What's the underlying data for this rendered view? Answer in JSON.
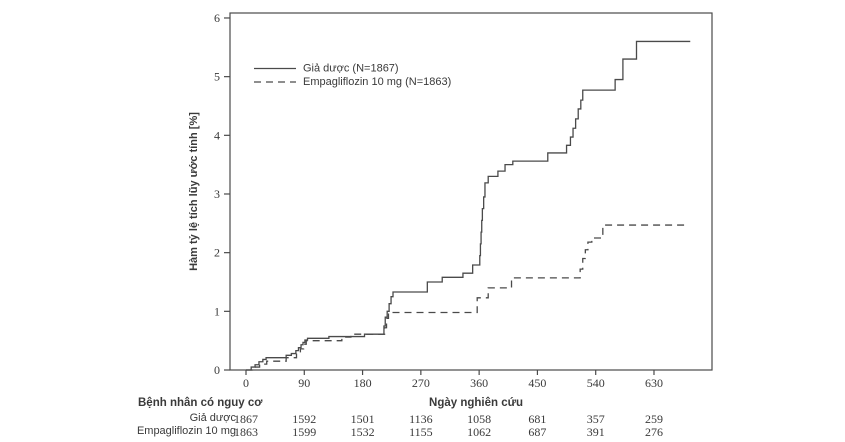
{
  "figure": {
    "background": "#ffffff",
    "line_color": "#4a4a4a",
    "text_color": "#3a3a3a"
  },
  "chart_data": {
    "type": "line",
    "subtype": "kaplan-meier-step-cumulative-incidence",
    "title": "",
    "xlabel": "Ngày nghiên cứu",
    "ylabel": "Hàm tỷ lệ tích lũy ước tính [%]",
    "xlim": [
      -25,
      720
    ],
    "ylim": [
      0,
      6.1
    ],
    "x_ticks": [
      0,
      90,
      180,
      270,
      360,
      450,
      540,
      630
    ],
    "y_ticks": [
      0,
      1,
      2,
      3,
      4,
      5,
      6
    ],
    "grid": false,
    "legend_position": "upper-left-inside",
    "series": [
      {
        "name": "Giả dược (N=1867)",
        "style": "solid",
        "points": [
          [
            0,
            0
          ],
          [
            8,
            0.05
          ],
          [
            14,
            0.09
          ],
          [
            20,
            0.14
          ],
          [
            26,
            0.18
          ],
          [
            31,
            0.21
          ],
          [
            62,
            0.25
          ],
          [
            70,
            0.28
          ],
          [
            77,
            0.33
          ],
          [
            81,
            0.38
          ],
          [
            85,
            0.43
          ],
          [
            88,
            0.47
          ],
          [
            91,
            0.51
          ],
          [
            95,
            0.54
          ],
          [
            128,
            0.57
          ],
          [
            183,
            0.61
          ],
          [
            213,
            0.75
          ],
          [
            215,
            0.9
          ],
          [
            218,
            1.0
          ],
          [
            221,
            1.13
          ],
          [
            224,
            1.25
          ],
          [
            227,
            1.33
          ],
          [
            280,
            1.5
          ],
          [
            303,
            1.58
          ],
          [
            335,
            1.65
          ],
          [
            350,
            1.79
          ],
          [
            361,
            1.95
          ],
          [
            362,
            2.15
          ],
          [
            363,
            2.35
          ],
          [
            364,
            2.55
          ],
          [
            365,
            2.75
          ],
          [
            367,
            2.95
          ],
          [
            369,
            3.19
          ],
          [
            374,
            3.3
          ],
          [
            389,
            3.39
          ],
          [
            400,
            3.5
          ],
          [
            412,
            3.56
          ],
          [
            466,
            3.7
          ],
          [
            495,
            3.83
          ],
          [
            501,
            3.97
          ],
          [
            505,
            4.12
          ],
          [
            509,
            4.28
          ],
          [
            513,
            4.45
          ],
          [
            517,
            4.6
          ],
          [
            520,
            4.77
          ],
          [
            570,
            4.95
          ],
          [
            582,
            5.3
          ],
          [
            603,
            5.6
          ],
          [
            686,
            5.6
          ]
        ]
      },
      {
        "name": "Empagliflozin 10 mg (N=1863)",
        "style": "dashed",
        "points": [
          [
            0,
            0
          ],
          [
            10,
            0.05
          ],
          [
            21,
            0.1
          ],
          [
            32,
            0.15
          ],
          [
            62,
            0.21
          ],
          [
            78,
            0.28
          ],
          [
            84,
            0.36
          ],
          [
            89,
            0.44
          ],
          [
            93,
            0.5
          ],
          [
            148,
            0.56
          ],
          [
            162,
            0.61
          ],
          [
            214,
            0.72
          ],
          [
            217,
            0.88
          ],
          [
            220,
            0.98
          ],
          [
            357,
            1.23
          ],
          [
            374,
            1.4
          ],
          [
            410,
            1.57
          ],
          [
            516,
            1.72
          ],
          [
            520,
            1.9
          ],
          [
            524,
            2.05
          ],
          [
            528,
            2.18
          ],
          [
            534,
            2.25
          ],
          [
            551,
            2.47
          ],
          [
            678,
            2.47
          ]
        ]
      }
    ]
  },
  "risk_table": {
    "header": "Bệnh nhân có nguy cơ",
    "days": [
      0,
      90,
      180,
      270,
      360,
      450,
      540,
      630
    ],
    "rows": [
      {
        "label": "Giả dược",
        "values": [
          "1867",
          "1592",
          "1501",
          "1136",
          "1058",
          "681",
          "357",
          "259"
        ]
      },
      {
        "label": "Empagliflozin 10 mg",
        "values": [
          "1863",
          "1599",
          "1532",
          "1155",
          "1062",
          "687",
          "391",
          "276"
        ]
      }
    ]
  }
}
